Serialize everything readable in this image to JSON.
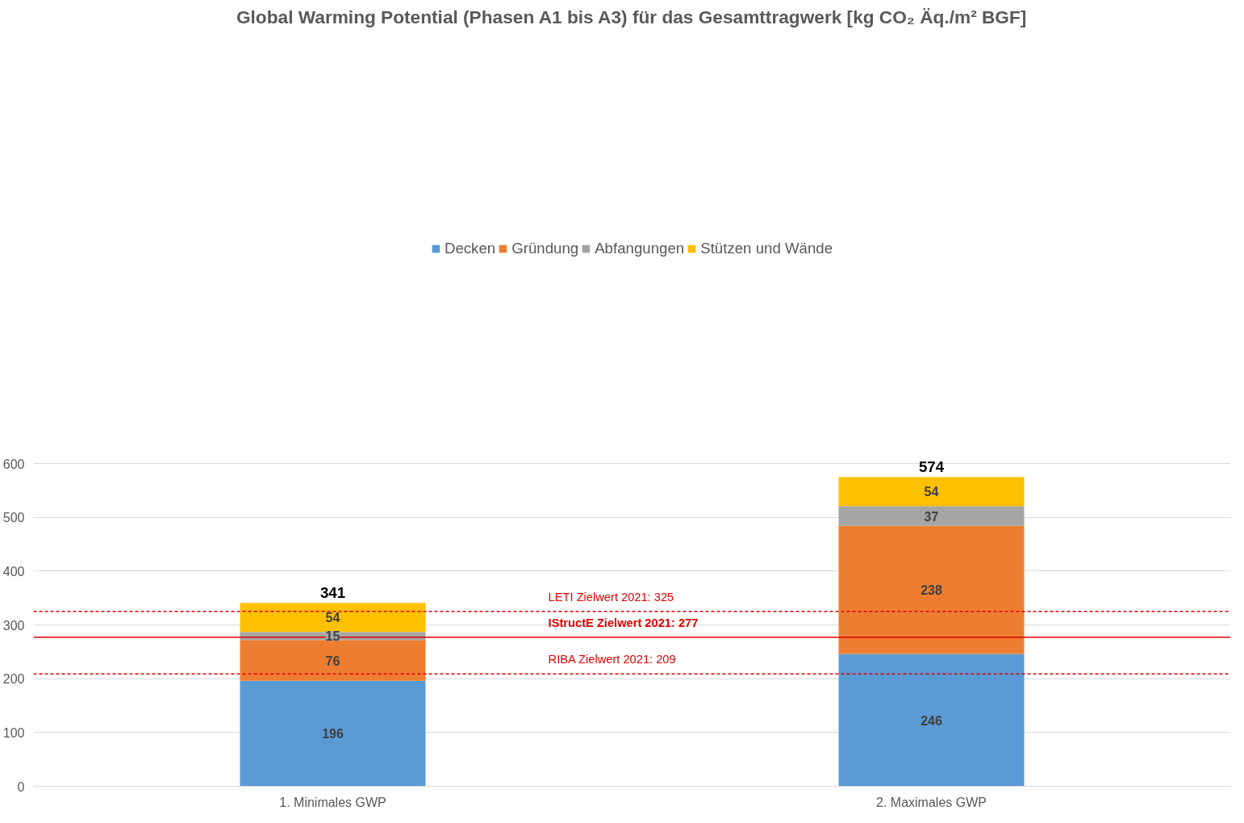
{
  "chart_data": {
    "type": "bar",
    "title": "Global Warming Potential (Phasen A1 bis A3) für das Gesamttragwerk [kg CO₂ Äq./m² BGF]",
    "stacked": true,
    "categories": [
      "1. Minimales GWP",
      "2. Maximales GWP"
    ],
    "series": [
      {
        "name": "Decken",
        "color": "#5b9bd5",
        "values": [
          196,
          246
        ]
      },
      {
        "name": "Gründung",
        "color": "#ed7d31",
        "values": [
          76,
          238
        ]
      },
      {
        "name": "Abfangungen",
        "color": "#a5a5a5",
        "values": [
          15,
          37
        ]
      },
      {
        "name": "Stützen und Wände",
        "color": "#ffc000",
        "values": [
          54,
          54
        ]
      }
    ],
    "data_labels": true,
    "totals": [
      "341",
      "574"
    ],
    "ref_lines": [
      {
        "axis": "y",
        "value": 325,
        "label": "LETI Zielwert 2021: 325",
        "color": "#e00000",
        "line_style": "dashed"
      },
      {
        "axis": "y",
        "value": 277,
        "label": "IStructE Zielwert 2021: 277",
        "color": "#e00000",
        "line_style": "solid"
      },
      {
        "axis": "y",
        "value": 209,
        "label": "RIBA Zielwert 2021: 209",
        "color": "#e00000",
        "line_style": "dashed"
      }
    ],
    "ylim": [
      0,
      600
    ],
    "yticks": [
      0,
      100,
      200,
      300,
      400,
      500,
      600
    ],
    "grid": "y",
    "legend": "top"
  }
}
